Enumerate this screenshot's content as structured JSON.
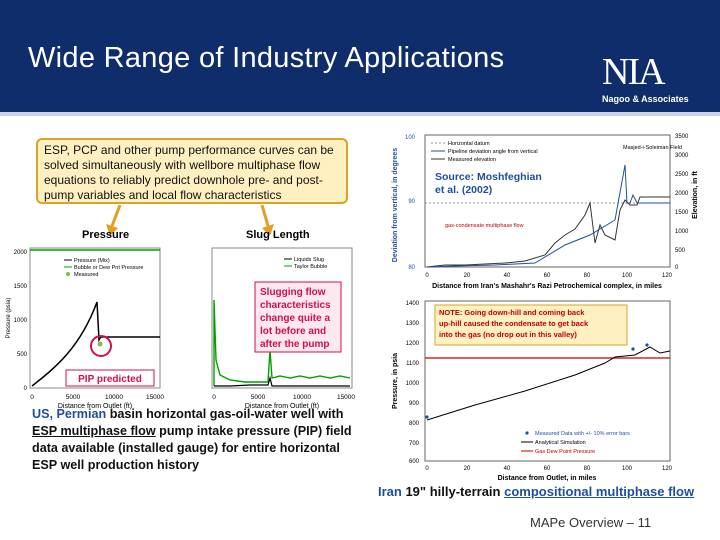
{
  "slide": {
    "title": "Wide Range of Industry Applications",
    "logo_mark": "NIA",
    "logo_sub": "Nagoo & Associates",
    "callout": "ESP, PCP and other pump performance curves can be solved simultaneously with wellbore multiphase flow equations to reliably predict downhole pre- and post-pump variables and local flow characteristics",
    "caption_prefix": "US, Permian",
    "caption_body": " basin horizontal gas-oil-water well with ",
    "caption_link": "ESP multiphase flow",
    "caption_tail": " pump intake pressure (PIP) field data available (installed gauge) for entire horizontal ESP well production history",
    "iran_caption": {
      "p1": "Iran",
      "p2": " 19\" hilly-terrain ",
      "p3": "compositional multiphase flow"
    },
    "footer": "MAPe Overview – 11"
  },
  "pressure_plot": {
    "title": "Pressure",
    "ylabel": "Pressure (psia)",
    "xlabel": "Distance from Outlet (ft)",
    "yticks": [
      "0",
      "500",
      "1000",
      "1500",
      "2000"
    ],
    "xticks": [
      "0",
      "5000",
      "10000",
      "15000"
    ],
    "legend": [
      "Pressure (Mix)",
      "Bubble or Dew Pnt Pressure",
      "Measured"
    ],
    "annotation": "PIP predicted",
    "colors": {
      "pressure": "#000000",
      "bubble": "#00a000",
      "measured": "#7cc242",
      "annotation": "#d0104c"
    }
  },
  "slug_plot": {
    "title": "Slug Length",
    "xlabel": "Distance from Outlet (ft)",
    "xticks": [
      "0",
      "5000",
      "10000",
      "15000"
    ],
    "legend": [
      "Liquids Slug",
      "Taylor Bubble"
    ],
    "annotation": "Slugging flow characteristics change quite a lot before and after the pump",
    "colors": {
      "liquid": "#000000",
      "taylor": "#00a000",
      "annotation": "#d0104c"
    }
  },
  "iran_top_plot": {
    "legend": [
      "Horizontal datum",
      "Pipeline deviation angle from vertical",
      "Measured elevation"
    ],
    "source": "Source: Moshfeghian et al. (2002)",
    "ylabel_left": "Deviation from vertical, in degrees",
    "ylabel_right": "Elevation, in ft",
    "xlabel": "Distance from Iran's Mashahr's Razi Petrochemical complex, in miles",
    "yticks_left": [
      "100",
      "90",
      "80"
    ],
    "yticks_right": [
      "3500",
      "3000",
      "2500",
      "2000",
      "1500",
      "1000",
      "500",
      "0"
    ],
    "xticks": [
      "0",
      "20",
      "40",
      "60",
      "80",
      "100",
      "120"
    ],
    "field_label": "Masjed-i-Soleiman Field",
    "flow_label": "gas-condensate multiphase flow"
  },
  "iran_bottom_plot": {
    "ylabel": "Pressure, in psia",
    "xlabel": "Distance from Outlet, in miles",
    "yticks": [
      "1400",
      "1300",
      "1200",
      "1100",
      "1000",
      "900",
      "800",
      "700",
      "600"
    ],
    "xticks": [
      "0",
      "20",
      "40",
      "60",
      "80",
      "100",
      "120"
    ],
    "note": "NOTE: Going down-hill and coming back up-hill caused the condensate to get back into the gas (no drop out in this valley)",
    "legend": [
      "Measured Data with +/- 10% error bars",
      "Analytical Simulation",
      "Gas Dew Point Pressure"
    ],
    "colors": {
      "measured": "#1f4e9c",
      "sim": "#000000",
      "dew": "#c00000"
    }
  }
}
